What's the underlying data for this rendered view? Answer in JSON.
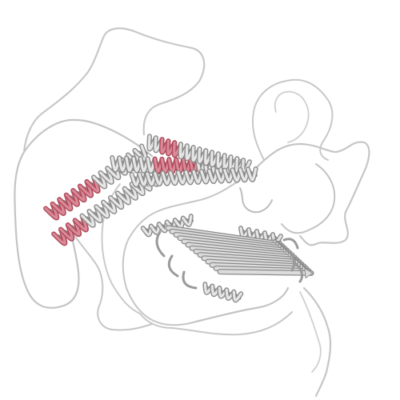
{
  "scene": {
    "subject": "protein-ribbon-structure",
    "background_color": "#ffffff",
    "colors": {
      "coil": "#c8c8c8",
      "coil_dark": "#9a9a9a",
      "helix_light": "#e6e6e6",
      "helix_shadow": "#8c8c8c",
      "helix_accent": "#b0485a",
      "sheet": "#dcdcdc",
      "sheet_edge": "#8a8a8a"
    }
  }
}
